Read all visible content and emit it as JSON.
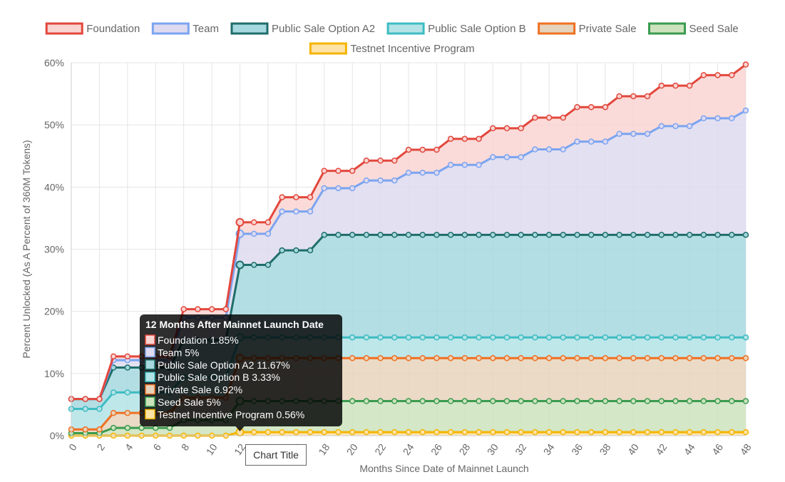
{
  "chart_data": {
    "type": "area",
    "stacked": true,
    "xlabel": "Months Since Date of Mainnet Launch",
    "ylabel": "Percent Unlocked (As A Percent of 360M Tokens)",
    "xlim": [
      0,
      48
    ],
    "ylim": [
      0,
      60
    ],
    "y_tick_suffix": "%",
    "x_ticks": [
      0,
      2,
      4,
      6,
      8,
      10,
      12,
      14,
      16,
      18,
      20,
      22,
      24,
      26,
      28,
      30,
      32,
      34,
      36,
      38,
      40,
      42,
      44,
      46,
      48
    ],
    "y_ticks": [
      0,
      10,
      20,
      30,
      40,
      50,
      60
    ],
    "grid": true,
    "legend_position": "top",
    "x": [
      0,
      1,
      2,
      3,
      4,
      5,
      6,
      7,
      8,
      9,
      10,
      11,
      12,
      13,
      14,
      15,
      16,
      17,
      18,
      19,
      20,
      21,
      22,
      23,
      24,
      25,
      26,
      27,
      28,
      29,
      30,
      31,
      32,
      33,
      34,
      35,
      36,
      37,
      38,
      39,
      40,
      41,
      42,
      43,
      44,
      45,
      46,
      47,
      48
    ],
    "series": [
      {
        "name": "Testnet Incentive Program",
        "line_color": "#f5b400",
        "fill_color": "#fde3a7",
        "values": [
          0,
          0,
          0,
          0,
          0,
          0,
          0,
          0,
          0,
          0,
          0,
          0,
          0.56,
          0.56,
          0.56,
          0.56,
          0.56,
          0.56,
          0.56,
          0.56,
          0.56,
          0.56,
          0.56,
          0.56,
          0.56,
          0.56,
          0.56,
          0.56,
          0.56,
          0.56,
          0.56,
          0.56,
          0.56,
          0.56,
          0.56,
          0.56,
          0.56,
          0.56,
          0.56,
          0.56,
          0.56,
          0.56,
          0.56,
          0.56,
          0.56,
          0.56,
          0.56,
          0.56,
          0.56
        ]
      },
      {
        "name": "Seed Sale",
        "line_color": "#3a9b4f",
        "fill_color": "#cde3bd",
        "values": [
          0.4,
          0.4,
          0.4,
          1.25,
          1.25,
          1.25,
          1.25,
          1.25,
          2.5,
          2.5,
          2.5,
          2.5,
          5,
          5,
          5,
          5,
          5,
          5,
          5,
          5,
          5,
          5,
          5,
          5,
          5,
          5,
          5,
          5,
          5,
          5,
          5,
          5,
          5,
          5,
          5,
          5,
          5,
          5,
          5,
          5,
          5,
          5,
          5,
          5,
          5,
          5,
          5,
          5,
          5
        ]
      },
      {
        "name": "Private Sale",
        "line_color": "#f07020",
        "fill_color": "#e6d3bc",
        "values": [
          0.6,
          0.6,
          0.6,
          2.4,
          2.4,
          2.4,
          2.4,
          2.4,
          3.6,
          3.6,
          3.6,
          3.6,
          6.92,
          6.92,
          6.92,
          6.92,
          6.92,
          6.92,
          6.92,
          6.92,
          6.92,
          6.92,
          6.92,
          6.92,
          6.92,
          6.92,
          6.92,
          6.92,
          6.92,
          6.92,
          6.92,
          6.92,
          6.92,
          6.92,
          6.92,
          6.92,
          6.92,
          6.92,
          6.92,
          6.92,
          6.92,
          6.92,
          6.92,
          6.92,
          6.92,
          6.92,
          6.92,
          6.92,
          6.92
        ]
      },
      {
        "name": "Public Sale Option B",
        "line_color": "#3dbcc2",
        "fill_color": "#b3e3e6",
        "values": [
          3.3,
          3.3,
          3.3,
          3.3,
          3.3,
          3.3,
          3.3,
          3.3,
          3.3,
          3.3,
          3.3,
          3.3,
          3.33,
          3.33,
          3.33,
          3.33,
          3.33,
          3.33,
          3.33,
          3.33,
          3.33,
          3.33,
          3.33,
          3.33,
          3.33,
          3.33,
          3.33,
          3.33,
          3.33,
          3.33,
          3.33,
          3.33,
          3.33,
          3.33,
          3.33,
          3.33,
          3.33,
          3.33,
          3.33,
          3.33,
          3.33,
          3.33,
          3.33,
          3.33,
          3.33,
          3.33,
          3.33,
          3.33,
          3.33
        ]
      },
      {
        "name": "Public Sale Option A2",
        "line_color": "#1f6e6a",
        "fill_color": "#a6d8df",
        "values": [
          1.6,
          1.6,
          1.6,
          4,
          4,
          4,
          4,
          4,
          6,
          6,
          6,
          6,
          11.67,
          11.67,
          11.67,
          14,
          14,
          14,
          16.5,
          16.5,
          16.5,
          16.5,
          16.5,
          16.5,
          16.5,
          16.5,
          16.5,
          16.5,
          16.5,
          16.5,
          16.5,
          16.5,
          16.5,
          16.5,
          16.5,
          16.5,
          16.5,
          16.5,
          16.5,
          16.5,
          16.5,
          16.5,
          16.5,
          16.5,
          16.5,
          16.5,
          16.5,
          16.5,
          16.5
        ]
      },
      {
        "name": "Team",
        "line_color": "#7ba4f0",
        "fill_color": "#dedaf0",
        "values": [
          0,
          0,
          0,
          1.2,
          1.2,
          1.2,
          1.2,
          1.2,
          3.6,
          3.6,
          3.6,
          3.6,
          5,
          5,
          5,
          6.25,
          6.25,
          6.25,
          7.5,
          7.5,
          7.5,
          8.75,
          8.75,
          8.75,
          10,
          10,
          10,
          11.25,
          11.25,
          11.25,
          12.5,
          12.5,
          12.5,
          13.75,
          13.75,
          13.75,
          15,
          15,
          15,
          16.25,
          16.25,
          16.25,
          17.5,
          17.5,
          17.5,
          18.75,
          18.75,
          18.75,
          20
        ]
      },
      {
        "name": "Foundation",
        "line_color": "#e2473c",
        "fill_color": "#f9d5d2",
        "values": [
          0,
          0,
          0,
          0.6,
          0.6,
          0.6,
          0.6,
          0.6,
          1.35,
          1.35,
          1.35,
          1.35,
          1.85,
          1.85,
          1.85,
          2.3,
          2.3,
          2.3,
          2.8,
          2.8,
          2.8,
          3.2,
          3.2,
          3.2,
          3.7,
          3.7,
          3.7,
          4.2,
          4.2,
          4.2,
          4.65,
          4.65,
          4.65,
          5.1,
          5.1,
          5.1,
          5.55,
          5.55,
          5.55,
          6.05,
          6.05,
          6.05,
          6.5,
          6.5,
          6.5,
          6.95,
          6.95,
          6.95,
          7.4
        ]
      }
    ],
    "legend_order": [
      "Foundation",
      "Team",
      "Public Sale Option A2",
      "Public Sale Option B",
      "Private Sale",
      "Seed Sale",
      "Testnet Incentive Program"
    ]
  },
  "tooltip": {
    "title": "12 Months After Mainnet Launch Date",
    "x_index": 12,
    "items": [
      {
        "label": "Foundation 1.85%",
        "line_color": "#e2473c",
        "fill_color": "#f9d5d2"
      },
      {
        "label": "Team 5%",
        "line_color": "#7ba4f0",
        "fill_color": "#dedaf0"
      },
      {
        "label": "Public Sale Option A2 11.67%",
        "line_color": "#1f6e6a",
        "fill_color": "#a6d8df"
      },
      {
        "label": "Public Sale Option B 3.33%",
        "line_color": "#3dbcc2",
        "fill_color": "#b3e3e6"
      },
      {
        "label": "Private Sale 6.92%",
        "line_color": "#f07020",
        "fill_color": "#e6d3bc"
      },
      {
        "label": "Seed Sale 5%",
        "line_color": "#3a9b4f",
        "fill_color": "#cde3bd"
      },
      {
        "label": "Testnet Incentive Program 0.56%",
        "line_color": "#f5b400",
        "fill_color": "#fde3a7"
      }
    ]
  },
  "chart_title_box": "Chart Title"
}
